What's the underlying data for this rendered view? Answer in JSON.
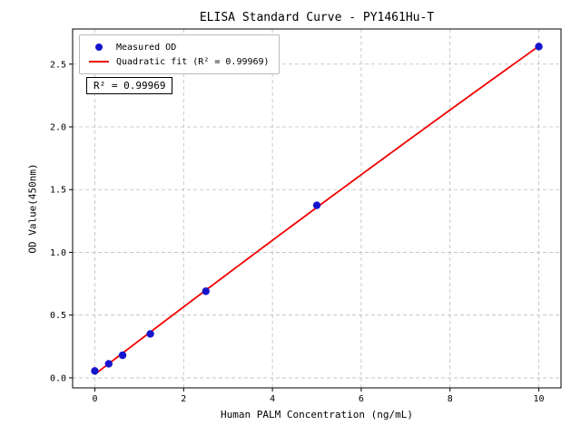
{
  "chart_data": {
    "type": "scatter",
    "title": "ELISA Standard Curve - PY1461Hu-T",
    "xlabel": "Human PALM Concentration (ng/mL)",
    "ylabel": "OD Value(450nm)",
    "xlim": [
      -0.5,
      10.5
    ],
    "ylim": [
      -0.08,
      2.78
    ],
    "xticks": [
      0,
      2,
      4,
      6,
      8,
      10
    ],
    "yticks": [
      0,
      0.5,
      1,
      1.5,
      2,
      2.5
    ],
    "grid": true,
    "grid_style": "dashed",
    "legend_position": "upper-left",
    "annotation": "R² = 0.99969",
    "series": [
      {
        "name": "Measured OD",
        "type": "scatter",
        "color": "#1515cd",
        "x": [
          0,
          0.313,
          0.625,
          1.25,
          2.5,
          5,
          10
        ],
        "y": [
          0.055,
          0.112,
          0.18,
          0.35,
          0.69,
          1.375,
          2.64
        ]
      },
      {
        "name": "Quadratic fit (R² = 0.99969)",
        "type": "line",
        "fit": "quadratic",
        "r_squared": 0.99969,
        "color": "#f00000"
      }
    ]
  }
}
